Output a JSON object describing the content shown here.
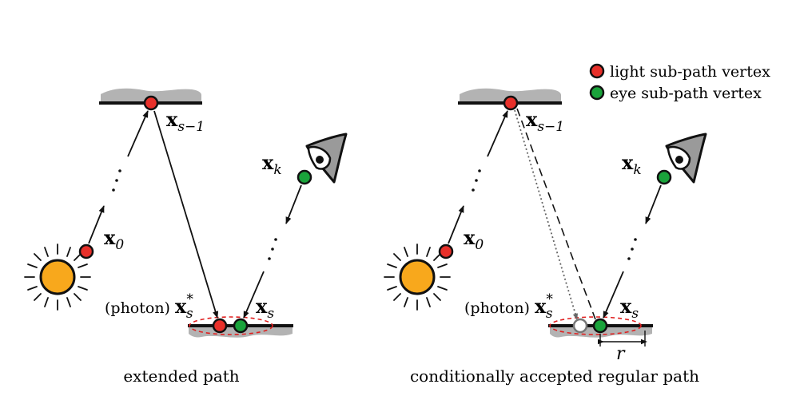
{
  "legend": {
    "light": "light sub-path vertex",
    "eye": "eye sub-path vertex"
  },
  "colors": {
    "light_vertex": "#e8302a",
    "eye_vertex": "#1aa33b",
    "sun": "#f8a81c",
    "surface": "#b3b3b3",
    "ellipse": "#e02020",
    "ink": "#111111"
  },
  "icons": {
    "sun": "sun-icon",
    "eye": "eye-icon"
  },
  "left": {
    "caption": "extended path",
    "x0_base": "x",
    "x0_sub": "0",
    "xs1_base": "x",
    "xs1_sub": "s−1",
    "xk_base": "x",
    "xk_sub": "k",
    "xs_base": "x",
    "xs_sub": "s",
    "photon_prefix": "(photon) ",
    "photon_base": "x",
    "photon_sub": "s",
    "photon_sup": "*"
  },
  "right": {
    "caption": "conditionally accepted regular path",
    "x0_base": "x",
    "x0_sub": "0",
    "xs1_base": "x",
    "xs1_sub": "s−1",
    "xk_base": "x",
    "xk_sub": "k",
    "xs_base": "x",
    "xs_sub": "s",
    "photon_prefix": "(photon) ",
    "photon_base": "x",
    "photon_sub": "s",
    "photon_sup": "*",
    "radius": "r"
  }
}
